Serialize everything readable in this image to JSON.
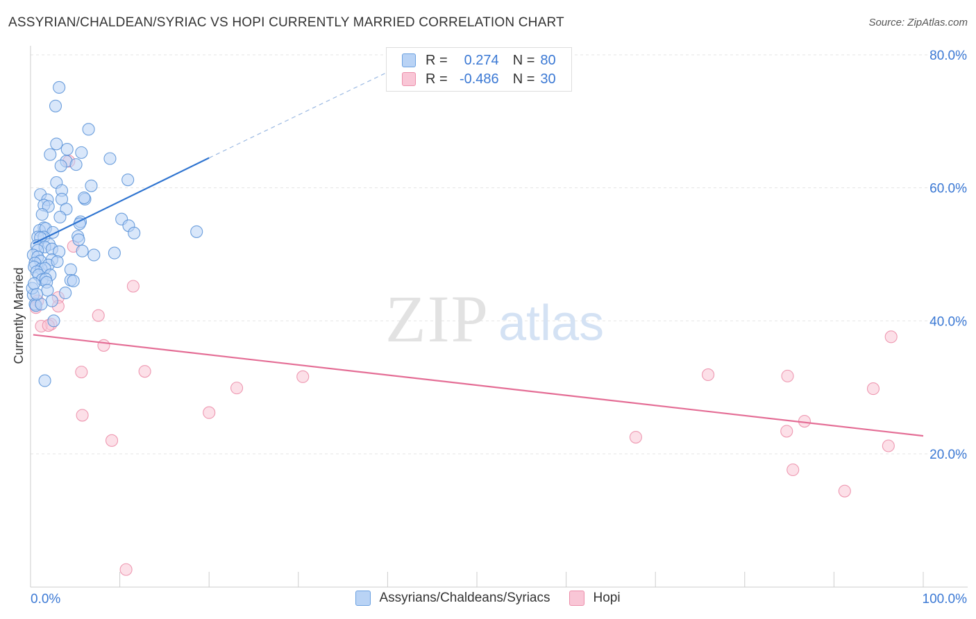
{
  "header": {
    "title": "ASSYRIAN/CHALDEAN/SYRIAC VS HOPI CURRENTLY MARRIED CORRELATION CHART",
    "source": "Source: ZipAtlas.com"
  },
  "watermark": {
    "zip": "ZIP",
    "atlas": "atlas"
  },
  "legend": {
    "r_label": "R =",
    "n_label": "N =",
    "series1": {
      "r": "0.274",
      "n": "80"
    },
    "series2": {
      "r": "-0.486",
      "n": "30"
    }
  },
  "colors": {
    "blue_fill": "#b9d3f5",
    "blue_edge": "#5b93d8",
    "blue_line": "#2f74d0",
    "pink_fill": "#f9c6d6",
    "pink_edge": "#ec8eaa",
    "pink_line": "#e46d95"
  },
  "chart_data": {
    "type": "scatter",
    "title": "ASSYRIAN/CHALDEAN/SYRIAC VS HOPI CURRENTLY MARRIED CORRELATION CHART",
    "xlabel": "",
    "ylabel": "Currently Married",
    "xlim": [
      0,
      100
    ],
    "ylim": [
      0,
      80
    ],
    "x_ticks": [
      "0.0%",
      "100.0%"
    ],
    "y_ticks": [
      {
        "value": 20,
        "label": "20.0%"
      },
      {
        "value": 40,
        "label": "40.0%"
      },
      {
        "value": 60,
        "label": "60.0%"
      },
      {
        "value": 80,
        "label": "80.0%"
      }
    ],
    "grid": true,
    "series": [
      {
        "name": "Assyrians/Chaldeans/Syriacs",
        "r": 0.274,
        "n": 80,
        "trend": {
          "x0": 0.3,
          "y0": 51.6,
          "x1": 20,
          "y1": 64.5,
          "dash_to_x": 40,
          "dash_to_y": 77.4
        },
        "points": [
          [
            3.2,
            75.1
          ],
          [
            2.8,
            72.3
          ],
          [
            6.5,
            68.8
          ],
          [
            2.9,
            66.6
          ],
          [
            4.1,
            65.8
          ],
          [
            2.2,
            65.0
          ],
          [
            5.7,
            65.3
          ],
          [
            8.9,
            64.4
          ],
          [
            4.0,
            64.0
          ],
          [
            5.1,
            63.5
          ],
          [
            3.4,
            63.3
          ],
          [
            10.9,
            61.2
          ],
          [
            2.9,
            60.8
          ],
          [
            6.8,
            60.3
          ],
          [
            3.5,
            59.6
          ],
          [
            1.1,
            59.0
          ],
          [
            6.1,
            58.3
          ],
          [
            6.0,
            58.5
          ],
          [
            3.5,
            58.3
          ],
          [
            1.9,
            58.2
          ],
          [
            1.5,
            57.4
          ],
          [
            2.0,
            57.2
          ],
          [
            4.0,
            56.8
          ],
          [
            1.3,
            56.0
          ],
          [
            3.3,
            55.6
          ],
          [
            10.2,
            55.3
          ],
          [
            5.6,
            54.9
          ],
          [
            5.5,
            54.6
          ],
          [
            11.0,
            54.3
          ],
          [
            1.5,
            54.0
          ],
          [
            1.0,
            53.6
          ],
          [
            1.7,
            53.9
          ],
          [
            18.6,
            53.4
          ],
          [
            2.5,
            53.3
          ],
          [
            11.6,
            53.2
          ],
          [
            0.8,
            52.6
          ],
          [
            1.5,
            52.6
          ],
          [
            1.1,
            52.5
          ],
          [
            5.3,
            52.7
          ],
          [
            5.4,
            52.2
          ],
          [
            2.1,
            51.5
          ],
          [
            0.7,
            51.3
          ],
          [
            1.6,
            51.1
          ],
          [
            2.4,
            50.8
          ],
          [
            0.8,
            50.6
          ],
          [
            3.2,
            50.4
          ],
          [
            5.8,
            50.5
          ],
          [
            9.4,
            50.2
          ],
          [
            7.1,
            49.9
          ],
          [
            0.3,
            49.9
          ],
          [
            0.8,
            49.6
          ],
          [
            2.4,
            49.2
          ],
          [
            1.1,
            49.0
          ],
          [
            0.5,
            48.7
          ],
          [
            2.0,
            48.4
          ],
          [
            3.0,
            48.9
          ],
          [
            0.4,
            48.1
          ],
          [
            1.2,
            47.8
          ],
          [
            1.6,
            47.9
          ],
          [
            4.5,
            47.7
          ],
          [
            0.7,
            47.4
          ],
          [
            0.9,
            46.9
          ],
          [
            2.2,
            46.9
          ],
          [
            1.3,
            46.2
          ],
          [
            1.7,
            46.3
          ],
          [
            4.5,
            46.1
          ],
          [
            4.8,
            46.0
          ],
          [
            1.8,
            45.8
          ],
          [
            1.9,
            44.6
          ],
          [
            3.9,
            44.2
          ],
          [
            0.3,
            43.9
          ],
          [
            2.4,
            43.0
          ],
          [
            0.5,
            42.5
          ],
          [
            0.6,
            42.3
          ],
          [
            1.2,
            42.5
          ],
          [
            2.6,
            40.0
          ],
          [
            1.6,
            31.0
          ],
          [
            0.2,
            44.9
          ],
          [
            0.4,
            45.6
          ],
          [
            0.7,
            44.0
          ]
        ]
      },
      {
        "name": "Hopi",
        "r": -0.486,
        "n": 30,
        "trend": {
          "x0": 0.3,
          "y0": 37.9,
          "x1": 100,
          "y1": 22.7
        },
        "points": [
          [
            4.3,
            64.0
          ],
          [
            4.8,
            51.2
          ],
          [
            11.5,
            45.2
          ],
          [
            3.1,
            43.5
          ],
          [
            0.8,
            43.0
          ],
          [
            0.6,
            42.0
          ],
          [
            3.1,
            42.2
          ],
          [
            7.6,
            40.8
          ],
          [
            2.3,
            39.5
          ],
          [
            1.2,
            39.2
          ],
          [
            2.0,
            39.3
          ],
          [
            8.2,
            36.3
          ],
          [
            96.4,
            37.6
          ],
          [
            5.7,
            32.3
          ],
          [
            12.8,
            32.4
          ],
          [
            75.9,
            31.9
          ],
          [
            84.8,
            31.7
          ],
          [
            30.5,
            31.6
          ],
          [
            23.1,
            29.9
          ],
          [
            94.4,
            29.8
          ],
          [
            20.0,
            26.2
          ],
          [
            5.8,
            25.8
          ],
          [
            86.7,
            24.9
          ],
          [
            84.7,
            23.4
          ],
          [
            9.1,
            22.0
          ],
          [
            67.8,
            22.5
          ],
          [
            96.1,
            21.2
          ],
          [
            85.4,
            17.6
          ],
          [
            91.2,
            14.4
          ],
          [
            10.7,
            2.6
          ]
        ]
      }
    ]
  }
}
